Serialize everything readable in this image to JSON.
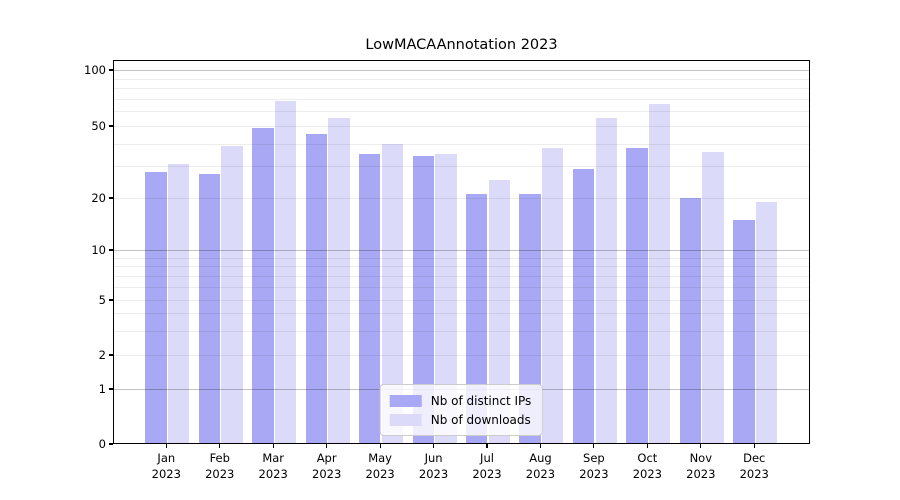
{
  "page": {
    "title": "LowMACAAnnotation 2023"
  },
  "chart_data": {
    "type": "bar",
    "title": "LowMACAAnnotation 2023",
    "scale": "log-like",
    "grid": true,
    "xlabel": "",
    "ylabel": "",
    "categories": [
      "Jan",
      "Feb",
      "Mar",
      "Apr",
      "May",
      "Jun",
      "Jul",
      "Aug",
      "Sep",
      "Oct",
      "Nov",
      "Dec"
    ],
    "year_label": "2023",
    "series": [
      {
        "name": "Nb of distinct IPs",
        "color": "#a8a8f5",
        "values": [
          28,
          27,
          49,
          45,
          35,
          34,
          21,
          21,
          29,
          38,
          20,
          15
        ]
      },
      {
        "name": "Nb of downloads",
        "color": "#dbdbf9",
        "values": [
          31,
          39,
          68,
          55,
          40,
          35,
          25,
          38,
          55,
          66,
          36,
          19
        ]
      }
    ],
    "y_ticks": [
      0,
      1,
      2,
      5,
      10,
      20,
      50,
      100
    ],
    "ylim": [
      0,
      113
    ],
    "legend": {
      "position": "lower center",
      "entries": [
        "Nb of distinct IPs",
        "Nb of downloads"
      ]
    }
  }
}
